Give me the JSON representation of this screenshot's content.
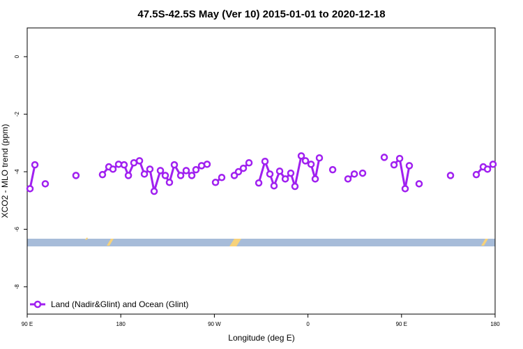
{
  "chart_data": {
    "type": "line",
    "title": "47.5S-42.5S May (Ver 10)   2015-01-01 to 2020-12-18",
    "x_label": "Longitude (deg E)",
    "y_label": "XCO2 - MLO trend (ppm)",
    "xlim": [
      90,
      540
    ],
    "ylim": [
      -8.95,
      1.0
    ],
    "xticks": [
      {
        "value": 90,
        "label": "90 E"
      },
      {
        "value": 180,
        "label": "180"
      },
      {
        "value": 270,
        "label": "90 W"
      },
      {
        "value": 360,
        "label": "0"
      },
      {
        "value": 450,
        "label": "90 E"
      },
      {
        "value": 540,
        "label": "180"
      }
    ],
    "yticks": [
      0,
      -2,
      -4,
      -6,
      -8
    ],
    "grid": false,
    "legend": "bottom-left",
    "x": [
      92.7,
      97.4,
      null,
      107.4,
      null,
      136.9,
      null,
      162.4,
      168.5,
      172.5,
      177.9,
      183.2,
      187.3,
      192.6,
      198.0,
      202.7,
      208.0,
      212.1,
      218.1,
      222.8,
      226.8,
      231.5,
      237.6,
      242.9,
      248.3,
      252.3,
      257.7,
      263.0,
      null,
      271.1,
      277.1,
      null,
      289.2,
      293.2,
      297.9,
      303.3,
      null,
      312.7,
      318.7,
      323.4,
      327.4,
      332.8,
      338.2,
      343.5,
      347.5,
      353.6,
      357.6,
      363.0,
      367.0,
      371.0,
      null,
      383.8,
      null,
      398.5,
      404.6,
      null,
      412.6,
      null,
      433.4,
      null,
      442.8,
      448.2,
      453.5,
      457.5,
      null,
      466.9,
      null,
      497.1,
      null,
      521.9,
      528.6,
      532.7,
      538.0
    ],
    "series": [
      {
        "name": "Land (Nadir&Glint) and Ocean (Glint)",
        "color": "#a020f0",
        "values": [
          -4.59,
          -3.76,
          null,
          -4.42,
          null,
          -4.13,
          null,
          -4.1,
          -3.83,
          -3.91,
          -3.74,
          -3.76,
          -4.13,
          -3.69,
          -3.62,
          -4.08,
          -3.91,
          -4.68,
          -3.96,
          -4.13,
          -4.37,
          -3.76,
          -4.13,
          -3.96,
          -4.13,
          -3.93,
          -3.79,
          -3.74,
          null,
          -4.37,
          -4.2,
          null,
          -4.13,
          -4.0,
          -3.88,
          -3.69,
          null,
          -4.39,
          -3.64,
          -4.08,
          -4.49,
          -3.98,
          -4.25,
          -4.05,
          -4.51,
          -3.45,
          -3.62,
          -3.74,
          -4.25,
          -3.52,
          null,
          -3.93,
          null,
          -4.25,
          -4.08,
          null,
          -4.05,
          null,
          -3.5,
          null,
          -3.76,
          -3.54,
          -4.59,
          -3.79,
          null,
          -4.42,
          null,
          -4.13,
          null,
          -4.1,
          -3.83,
          -3.91,
          -3.74
        ]
      }
    ]
  }
}
